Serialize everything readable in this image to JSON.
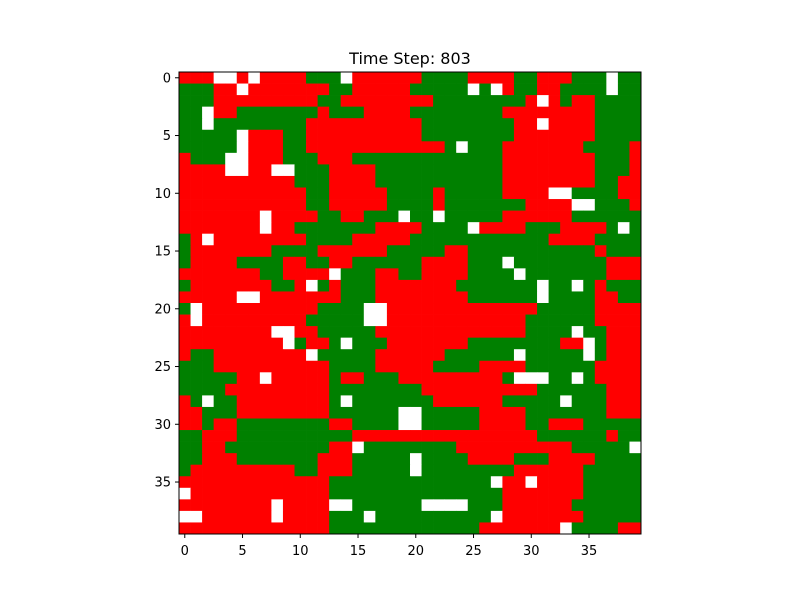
{
  "chart_data": {
    "type": "heatmap",
    "title": "Time Step: 803",
    "xlabel": "",
    "ylabel": "",
    "rows": 40,
    "cols": 40,
    "xticks": [
      0,
      5,
      10,
      15,
      20,
      25,
      30,
      35
    ],
    "yticks": [
      0,
      5,
      10,
      15,
      20,
      25,
      30,
      35
    ],
    "xlim": [
      -0.5,
      39.5
    ],
    "ylim": [
      39.5,
      -0.5
    ],
    "grid": false,
    "legend": "none",
    "value_legend": {
      "R": "red",
      "G": "green",
      "W": "white"
    },
    "colors": {
      "R": "#ff0000",
      "G": "#008000",
      "W": "#ffffff"
    },
    "grid_rows": [
      "RRRWWRWRRRRGGGWRRRRRRGGGGRRRRGGRRRGGGWGG",
      "GGGRRWRRRRRRRGGRRRRRGGGGGWGWRGGRRGGGGWGG",
      "GGGRRRRRRRRRGGRRRRRRRRGGGGGGGGRWRGRRGGGG",
      "GGWRRGGGGGGGRGGGRRRRGGGGGGGGRRRRRRRRGGGG",
      "GGWGGGGGGGGRRRRRRRRRRGGGGGGGGRRWRRRRGGGG",
      "GGGGGWRRRGGRRRRRRRRRRGGGGGGGGRRRRRRRGGGG",
      "GGGGGWRRRGGRRRRRRRRRRRRGWGGGRRRRRRRGGGGR",
      "RGGGWWRRRGGGRRRGGGGGGGGGGGGGRRRRRRRRGGGR",
      "RRRRWWRRWWGGGRRRRGGGGGGGGGGGRRRRRRRRGGGR",
      "RRRRRRRRRRGGGRRRRGGGGGGGGGGGRRRRRRRRGGRR",
      "RRRRRRRRRRRGGRRRRRGGGGRGGGGGRRRRWWGGGGRR",
      "RRRRRRRRRRRGGRRRRRGGGGRGGGGGGGRRRRWWGGGR",
      "RRRRRRRWRRRRGGRRGGGWGGWGGGGGRRRRRRGGGGGG",
      "RRRRRRRWRRGGGGGGGRRRRGGGGWRRRRGGGRRRRGWG",
      "GRWRRRRRRRRGGGGRRRRRGGGGGGGGGGGGRRRRGGGG",
      "GRRRRRRRGGGGRRRRRRGGGGGRRGGGGGGGGGGGRGGG",
      "GRRRRGGGGRRGGRRGGGGGGRRRRGGGWGGGGGGGGRRR",
      "RRRRRRRGGRRRRWGGGRRGGRRRRGGGGWGGGGGGGRRR",
      "GRRRRRRRGGRWGRGGGRRRRRRRGGGGGGGWGGWGRGGG",
      "RRRRRWWRRRRRRRGGGRRRRRRRRGGGGGGWGGGGRRGG",
      "GWRRRRRRRRRRGGGGWWRRRRRRRRRRRRRGGGGGRRRR",
      "RWRRRRRRRRRGGGGGWWRRRRRRRRRRRRGGGGGGRRRR",
      "RRRRRRRRWWRRGGGGGRRRRRRRRRRRRRGGGGWGGRRR",
      "RRRRRRRRRWGRRGWGGGRRRRRRRGGGGGGGGRRWGRRR",
      "RGGRRRRRRRRWGGGGGRRRRRRGGGGGGWGGGGGWGRRR",
      "GGGRRRRRRRRRRGGGGRRRRRGGGGRRRRGGGGGGRRRR",
      "GGGGGRRWRRRRRGRRGGGRRRRRRRRRGWWWGGWGRRRR",
      "GGGGRRRRRRRRRGGGGGGGGRRRRRRRRRRGGGGGGRRR",
      "RGWGGRRRRRRRRGWGGGGGGGRRRRRRGGGGGWGGGRRR",
      "RRGGGRRRRRRRRGGGGGGWWGGGGGRRRRGGGGGGGRRR",
      "RRGRRGGGGGGGGRRGGGGWWGGGGGRRRRGGRRRGGGGG",
      "GGRRRGGGGGGGGGGRRRRRRRRRRRRRRRRGGGGGGRGG",
      "GGRRGGGGGGGGGRRWGGGGGGGGRRRRRRRRRRGGGGGW",
      "GGRRRGGGGGGGRRRGGGGGWGGGGRRRRGGGRRRRGGGG",
      "GRRRRRRRRRGGRRRGGGGGWGGGGGGGGRRRRRRGGGGG",
      "RRRRRRRRRRRRRGGGGGGGGGGGGGGWRRWRRRRGGGGG",
      "WRRRRRRRRRRRRGGGGGGGGGGGGGGGRRRRRRRGGGGG",
      "RRRRRRRRWRRRRWWGGGGGGWWWWGGGRRRRRRGGGGGG",
      "WWRRRRRRWRRRRGGGWGGGGGGGGGGWRRRRRRRGGGGG",
      "RRRRRRRRRRRRRGGGGGGGGGGGGGRRRRRRRWGGGGRR"
    ]
  }
}
